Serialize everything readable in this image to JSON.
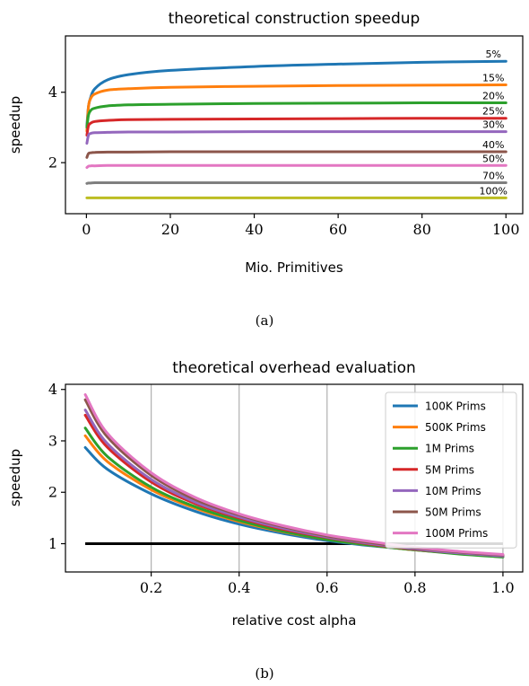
{
  "colors": {
    "blue": "#1f77b4",
    "orange": "#ff7f0e",
    "green": "#2ca02c",
    "red": "#d62728",
    "purple": "#9467bd",
    "brown": "#8c564b",
    "pink": "#e377c2",
    "gray": "#7f7f7f",
    "olive": "#bcbd22",
    "black": "#000000"
  },
  "chart_data": [
    {
      "type": "line",
      "title": "theoretical construction speedup",
      "xlabel": "Mio. Primitives",
      "ylabel": "speedup",
      "caption": "(a)",
      "xlim": [
        -5,
        104
      ],
      "ylim": [
        0.55,
        5.6
      ],
      "xticks": [
        0,
        20,
        40,
        60,
        80,
        100
      ],
      "yticks": [
        2,
        4
      ],
      "grid": false,
      "x": [
        0.1,
        0.5,
        1,
        2,
        5,
        10,
        20,
        40,
        60,
        80,
        100
      ],
      "series": [
        {
          "name": "5%",
          "color_key": "blue",
          "values": [
            3.05,
            3.6,
            3.85,
            4.1,
            4.35,
            4.5,
            4.62,
            4.73,
            4.8,
            4.85,
            4.88
          ]
        },
        {
          "name": "15%",
          "color_key": "orange",
          "values": [
            2.9,
            3.6,
            3.82,
            3.95,
            4.06,
            4.1,
            4.14,
            4.17,
            4.19,
            4.2,
            4.21
          ]
        },
        {
          "name": "20%",
          "color_key": "green",
          "values": [
            3.0,
            3.35,
            3.48,
            3.55,
            3.61,
            3.64,
            3.66,
            3.68,
            3.69,
            3.7,
            3.7
          ]
        },
        {
          "name": "25%",
          "color_key": "red",
          "values": [
            2.78,
            3.05,
            3.12,
            3.17,
            3.2,
            3.22,
            3.23,
            3.24,
            3.25,
            3.26,
            3.26
          ]
        },
        {
          "name": "30%",
          "color_key": "purple",
          "values": [
            2.55,
            2.78,
            2.83,
            2.85,
            2.86,
            2.87,
            2.87,
            2.88,
            2.88,
            2.88,
            2.88
          ]
        },
        {
          "name": "40%",
          "color_key": "brown",
          "values": [
            2.15,
            2.26,
            2.28,
            2.29,
            2.3,
            2.3,
            2.31,
            2.31,
            2.31,
            2.31,
            2.31
          ]
        },
        {
          "name": "50%",
          "color_key": "pink",
          "values": [
            1.86,
            1.9,
            1.91,
            1.91,
            1.92,
            1.92,
            1.92,
            1.92,
            1.92,
            1.92,
            1.92
          ]
        },
        {
          "name": "70%",
          "color_key": "gray",
          "values": [
            1.41,
            1.42,
            1.42,
            1.43,
            1.43,
            1.43,
            1.43,
            1.43,
            1.43,
            1.43,
            1.43
          ]
        },
        {
          "name": "100%",
          "color_key": "olive",
          "values": [
            1.0,
            1.0,
            1.0,
            1.0,
            1.0,
            1.0,
            1.0,
            1.0,
            1.0,
            1.0,
            1.0
          ]
        }
      ],
      "label_x": 97
    },
    {
      "type": "line",
      "title": "theoretical overhead evaluation",
      "xlabel": "relative cost alpha",
      "ylabel": "speedup",
      "caption": "(b)",
      "xlim": [
        0.005,
        1.045
      ],
      "ylim": [
        0.45,
        4.1
      ],
      "xticks": [
        0.2,
        0.4,
        0.6,
        0.8,
        1.0
      ],
      "xtick_labels": [
        "0.2",
        "0.4",
        "0.6",
        "0.8",
        "1.0"
      ],
      "yticks": [
        1,
        2,
        3,
        4
      ],
      "grid": "x",
      "legend": "upper right",
      "x": [
        0.05,
        0.1,
        0.2,
        0.3,
        0.4,
        0.5,
        0.6,
        0.7,
        0.8,
        0.9,
        1.0
      ],
      "series": [
        {
          "name": "100K Prims",
          "color_key": "blue",
          "values": [
            2.87,
            2.45,
            1.97,
            1.63,
            1.38,
            1.2,
            1.06,
            0.96,
            0.88,
            0.81,
            0.75
          ]
        },
        {
          "name": "500K Prims",
          "color_key": "orange",
          "values": [
            3.1,
            2.6,
            2.05,
            1.69,
            1.43,
            1.23,
            1.08,
            0.97,
            0.88,
            0.81,
            0.75
          ]
        },
        {
          "name": "1M Prims",
          "color_key": "green",
          "values": [
            3.25,
            2.7,
            2.1,
            1.72,
            1.45,
            1.24,
            1.08,
            0.97,
            0.88,
            0.8,
            0.74
          ]
        },
        {
          "name": "5M Prims",
          "color_key": "red",
          "values": [
            3.5,
            2.88,
            2.2,
            1.78,
            1.5,
            1.28,
            1.12,
            0.99,
            0.89,
            0.82,
            0.76
          ]
        },
        {
          "name": "10M Prims",
          "color_key": "purple",
          "values": [
            3.6,
            2.95,
            2.25,
            1.81,
            1.52,
            1.3,
            1.13,
            1.0,
            0.9,
            0.82,
            0.76
          ]
        },
        {
          "name": "50M Prims",
          "color_key": "brown",
          "values": [
            3.8,
            3.08,
            2.33,
            1.86,
            1.56,
            1.33,
            1.15,
            1.02,
            0.92,
            0.84,
            0.78
          ]
        },
        {
          "name": "100M Prims",
          "color_key": "pink",
          "values": [
            3.9,
            3.15,
            2.38,
            1.9,
            1.58,
            1.35,
            1.17,
            1.04,
            0.93,
            0.85,
            0.79
          ]
        }
      ],
      "reference_line": {
        "y": 1.0,
        "color_key": "black"
      }
    }
  ]
}
